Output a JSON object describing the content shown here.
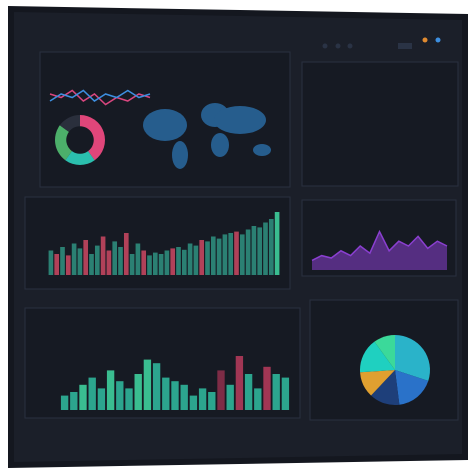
{
  "chart_data": [
    {
      "type": "donut",
      "values": [
        40,
        20,
        25,
        15
      ],
      "colors": [
        "#e0467a",
        "#2bbfae",
        "#4caf6a",
        "#2a2f3c"
      ]
    },
    {
      "type": "line",
      "ylim": [
        0,
        10
      ],
      "series": [
        {
          "color": "#d9467f",
          "values": [
            6,
            5,
            7,
            4,
            6,
            3,
            5,
            4,
            6,
            5
          ]
        },
        {
          "color": "#3d8fe0",
          "values": [
            4,
            6,
            5,
            7,
            4,
            6,
            5,
            7,
            5,
            6
          ]
        }
      ]
    },
    {
      "type": "bar",
      "ylim": [
        0,
        100
      ],
      "values": [
        35,
        30,
        40,
        28,
        45,
        38,
        50,
        30,
        42,
        55,
        35,
        48,
        40,
        60,
        30,
        45,
        35,
        28,
        32,
        30,
        35,
        38,
        40,
        36,
        45,
        42,
        50,
        48,
        55,
        52,
        58,
        60,
        62,
        58,
        65,
        70,
        68,
        75,
        80,
        90
      ],
      "colors": [
        "#2e8c7c",
        "#c2465f",
        "#2e8c7c",
        "#c2465f",
        "#2e8c7c",
        "#2e8c7c",
        "#c2465f",
        "#2e8c7c",
        "#2e8c7c",
        "#c2465f",
        "#c2465f",
        "#2e8c7c",
        "#2e8c7c",
        "#c2465f",
        "#2e8c7c",
        "#2e8c7c",
        "#c2465f",
        "#2e8c7c",
        "#2e8c7c",
        "#2e8c7c",
        "#2e8c7c",
        "#c2465f",
        "#2e8c7c",
        "#2e8c7c",
        "#2e8c7c",
        "#2e8c7c",
        "#c2465f",
        "#2e8c7c",
        "#2e8c7c",
        "#2e8c7c",
        "#2e8c7c",
        "#2e8c7c",
        "#c2465f",
        "#2e8c7c",
        "#2e8c7c",
        "#2e8c7c",
        "#2e8c7c",
        "#2e8c7c",
        "#2e8c7c",
        "#3ecf9c"
      ]
    },
    {
      "type": "area",
      "ylim": [
        0,
        10
      ],
      "color": "#8a3fd0",
      "values": [
        2,
        3,
        2.5,
        4,
        3,
        5,
        3.5,
        8,
        4,
        6,
        5,
        7,
        4.5,
        6,
        5
      ]
    },
    {
      "type": "bar",
      "ylim": [
        0,
        100
      ],
      "values": [
        20,
        25,
        35,
        45,
        30,
        55,
        40,
        30,
        50,
        70,
        65,
        45,
        40,
        35,
        20,
        30,
        25,
        55,
        35,
        75,
        50,
        30,
        60,
        50,
        45
      ],
      "colors": [
        "#2fb59a",
        "#2fb59a",
        "#3ecf9c",
        "#2fb59a",
        "#2fb59a",
        "#3ecf9c",
        "#2fb59a",
        "#2fb59a",
        "#3ecf9c",
        "#3ecf9c",
        "#2fb59a",
        "#2fb59a",
        "#2fb59a",
        "#2fb59a",
        "#2fb59a",
        "#2fb59a",
        "#2fb59a",
        "#8a2f4a",
        "#2fb59a",
        "#b03a5a",
        "#2fb59a",
        "#2fb59a",
        "#b03a5a",
        "#2fb59a",
        "#2fb59a"
      ]
    },
    {
      "type": "pie",
      "values": [
        30,
        18,
        14,
        12,
        16,
        10
      ],
      "colors": [
        "#2ab3c9",
        "#2a72c9",
        "#1e3f7a",
        "#e0a030",
        "#1fd0c0",
        "#3bd99a"
      ]
    }
  ]
}
